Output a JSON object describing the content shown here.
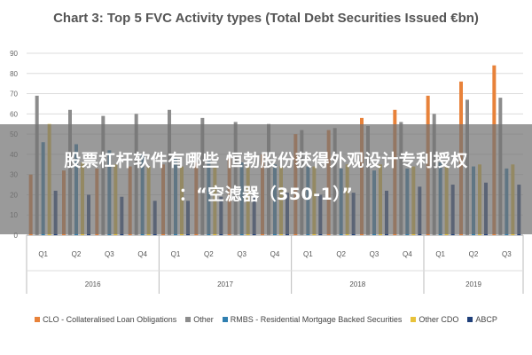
{
  "chart_data": {
    "type": "bar",
    "title": "Chart 3: Top 5 FVC Activity types (Total Debt Securities Issued €bn)",
    "xlabel": "",
    "ylabel": "",
    "ylim": [
      0,
      90
    ],
    "yticks": [
      "0",
      "10",
      "20",
      "30",
      "40",
      "50",
      "60",
      "70",
      "80",
      "90"
    ],
    "grid": true,
    "legend_position": "bottom",
    "categories": [
      "Q1",
      "Q2",
      "Q3",
      "Q4",
      "Q1",
      "Q2",
      "Q3",
      "Q4",
      "Q1",
      "Q2",
      "Q3",
      "Q4",
      "Q1",
      "Q2",
      "Q3"
    ],
    "year_groups": [
      {
        "label": "2016",
        "count": 4
      },
      {
        "label": "2017",
        "count": 4
      },
      {
        "label": "2018",
        "count": 4
      },
      {
        "label": "2019",
        "count": 3
      }
    ],
    "series": [
      {
        "name": "CLO - Collateralised Loan Obligations",
        "color": "#e8823a",
        "values": [
          30,
          32,
          33,
          34,
          35,
          36,
          38,
          40,
          50,
          52,
          58,
          62,
          69,
          76,
          84
        ]
      },
      {
        "name": "Other",
        "color": "#8c8c8c",
        "values": [
          69,
          62,
          59,
          60,
          62,
          58,
          56,
          55,
          52,
          53,
          54,
          56,
          60,
          67,
          68
        ]
      },
      {
        "name": "RMBS - Residential Mortgage Backed Securities",
        "color": "#2f7fb0",
        "values": [
          46,
          45,
          42,
          40,
          38,
          37,
          36,
          35,
          34,
          33,
          32,
          33,
          36,
          34,
          33
        ]
      },
      {
        "name": "Other CDO",
        "color": "#e8c23a",
        "values": [
          55,
          36,
          35,
          34,
          34,
          34,
          34,
          34,
          34,
          35,
          35,
          34,
          34,
          35,
          35
        ]
      },
      {
        "name": "ABCP",
        "color": "#1f3f7a",
        "values": [
          22,
          20,
          19,
          17,
          17,
          19,
          20,
          21,
          20,
          21,
          22,
          24,
          25,
          26,
          25
        ]
      }
    ]
  },
  "overlay": {
    "line1": "股票杠杆软件有哪些 恒勃股份获得外观设计专利授权",
    "line2": "：“空滤器（350-1）”"
  }
}
